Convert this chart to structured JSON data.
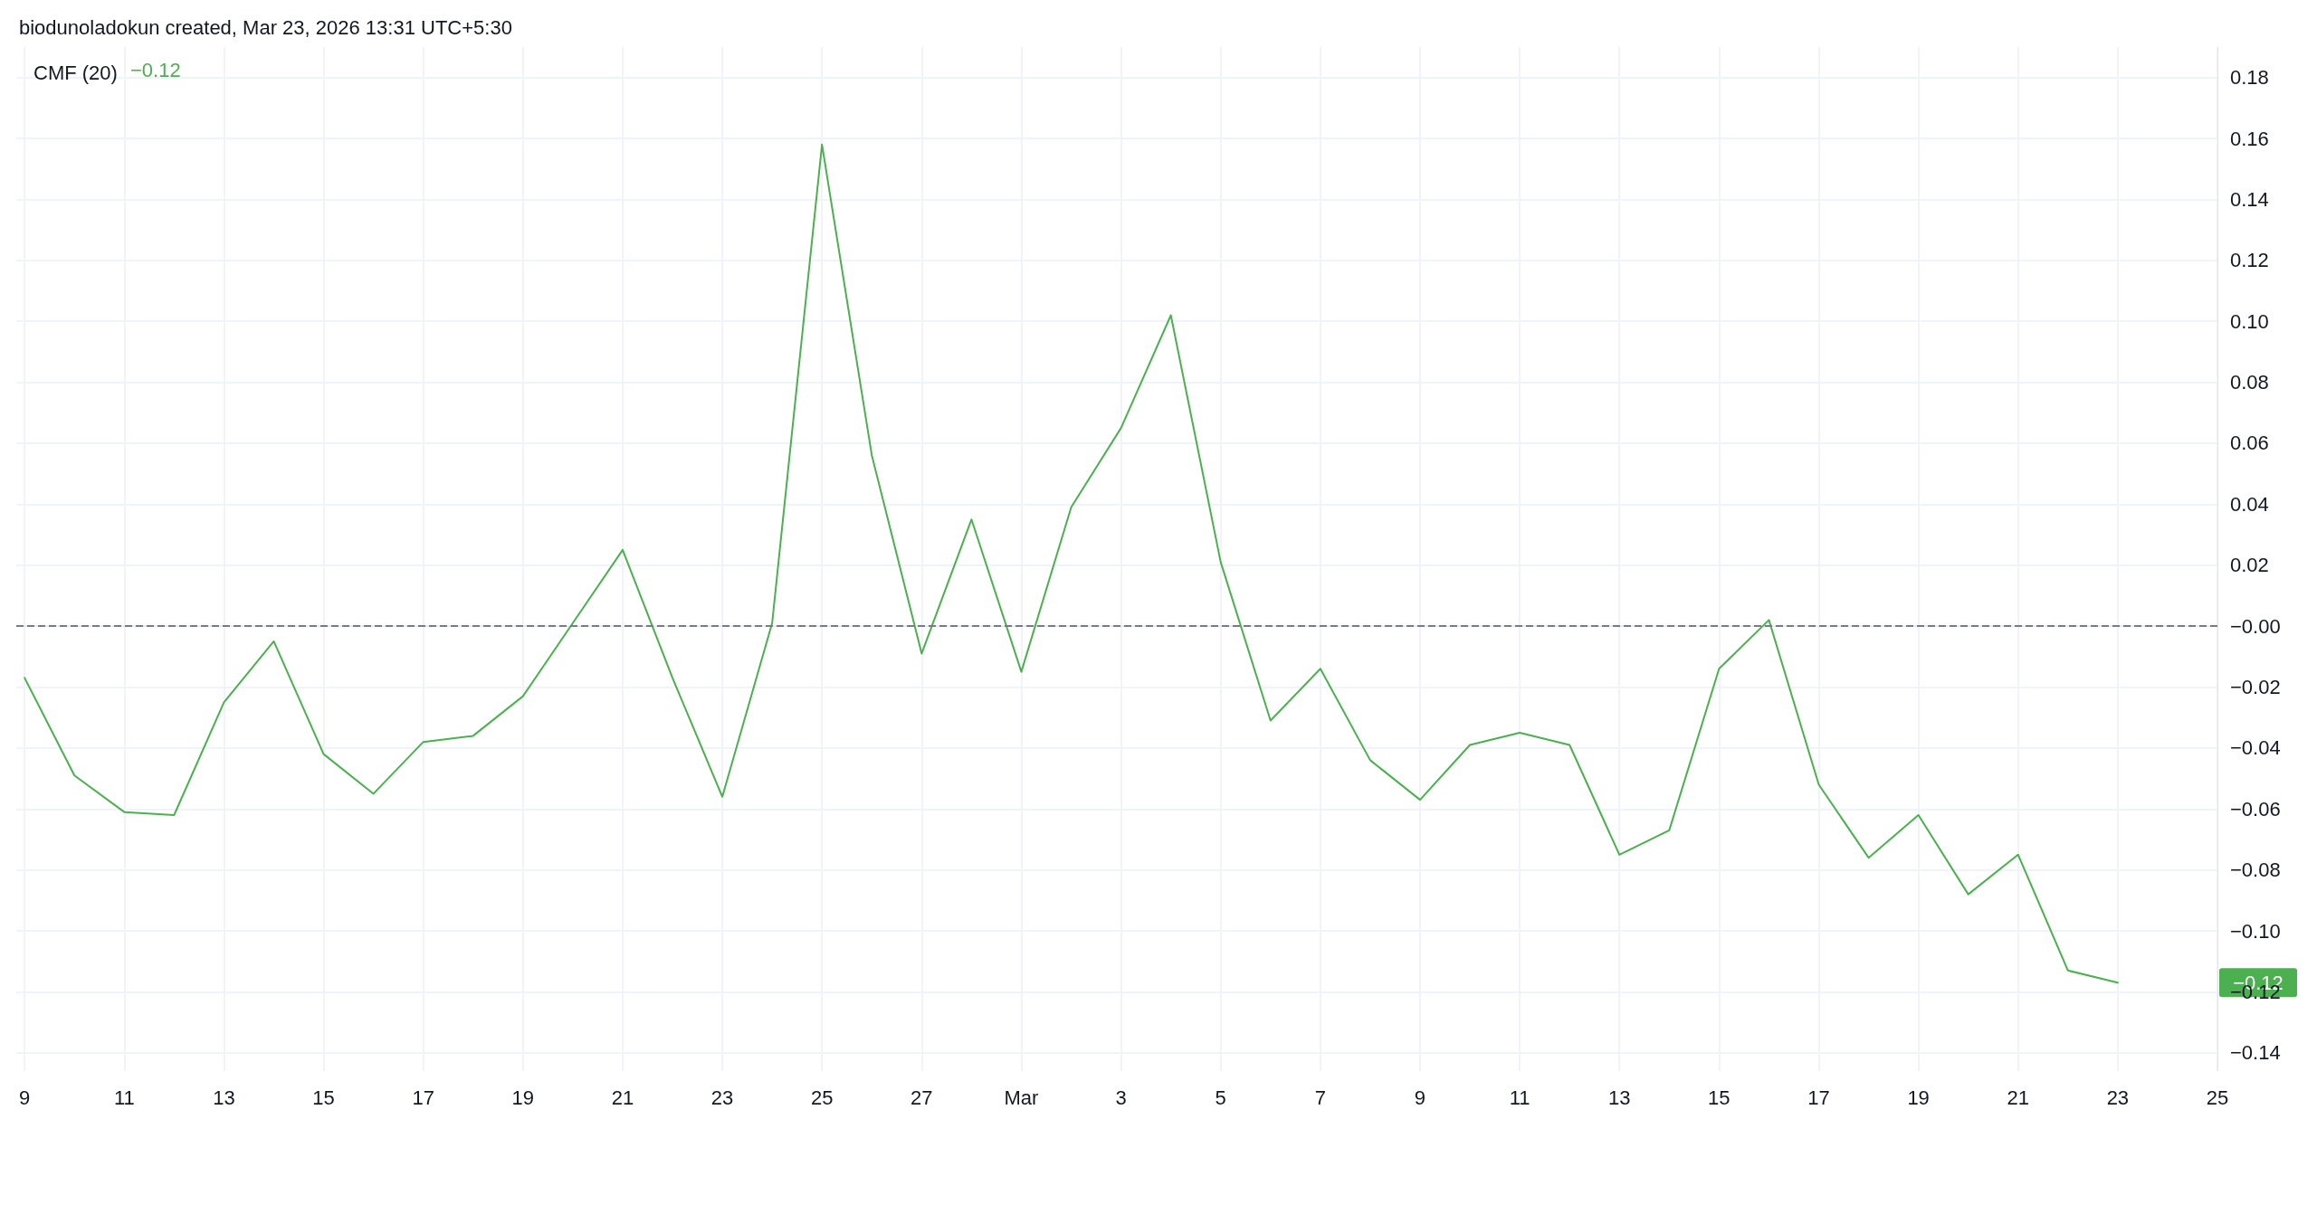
{
  "chart_data": {
    "type": "line",
    "title": "CMF (20)",
    "annotations": [
      "biodunoladokun created, Mar 23, 2026 13:31 UTC+5:30",
      "−0.12",
      "−0.12"
    ],
    "x": [
      "2026-02-09",
      "2026-02-10",
      "2026-02-11",
      "2026-02-12",
      "2026-02-13",
      "2026-02-14",
      "2026-02-15",
      "2026-02-16",
      "2026-02-17",
      "2026-02-18",
      "2026-02-19",
      "2026-02-20",
      "2026-02-21",
      "2026-02-22",
      "2026-02-23",
      "2026-02-24",
      "2026-02-25",
      "2026-02-26",
      "2026-02-27",
      "2026-02-28",
      "2026-03-01",
      "2026-03-02",
      "2026-03-03",
      "2026-03-04",
      "2026-03-05",
      "2026-03-06",
      "2026-03-07",
      "2026-03-08",
      "2026-03-09",
      "2026-03-10",
      "2026-03-11",
      "2026-03-12",
      "2026-03-13",
      "2026-03-14",
      "2026-03-15",
      "2026-03-16",
      "2026-03-17",
      "2026-03-18",
      "2026-03-19",
      "2026-03-20",
      "2026-03-21",
      "2026-03-22",
      "2026-03-23"
    ],
    "series": [
      {
        "color": "#4caf50",
        "values": [
          -0.017,
          -0.049,
          -0.061,
          -0.062,
          -0.025,
          -0.005,
          -0.042,
          -0.055,
          -0.038,
          -0.036,
          -0.023,
          0.001,
          0.025,
          -0.017,
          -0.056,
          0.001,
          0.158,
          0.056,
          -0.009,
          0.035,
          -0.015,
          0.039,
          0.065,
          0.102,
          0.021,
          -0.031,
          -0.014,
          -0.044,
          -0.057,
          -0.039,
          -0.035,
          -0.039,
          -0.075,
          -0.067,
          -0.014,
          0.002,
          -0.052,
          -0.076,
          -0.062,
          -0.088,
          -0.075,
          -0.113,
          -0.117
        ]
      }
    ],
    "xlim": [
      "2026-02-08T20:00",
      "2026-03-25"
    ],
    "xticks": [
      {
        "value": "2026-02-09",
        "label": "9"
      },
      {
        "value": "2026-02-11",
        "label": "11"
      },
      {
        "value": "2026-02-13",
        "label": "13"
      },
      {
        "value": "2026-02-15",
        "label": "15"
      },
      {
        "value": "2026-02-17",
        "label": "17"
      },
      {
        "value": "2026-02-19",
        "label": "19"
      },
      {
        "value": "2026-02-21",
        "label": "21"
      },
      {
        "value": "2026-02-23",
        "label": "23"
      },
      {
        "value": "2026-02-25",
        "label": "25"
      },
      {
        "value": "2026-02-27",
        "label": "27"
      },
      {
        "value": "2026-03-01",
        "label": "Mar"
      },
      {
        "value": "2026-03-03",
        "label": "3"
      },
      {
        "value": "2026-03-05",
        "label": "5"
      },
      {
        "value": "2026-03-07",
        "label": "7"
      },
      {
        "value": "2026-03-09",
        "label": "9"
      },
      {
        "value": "2026-03-11",
        "label": "11"
      },
      {
        "value": "2026-03-13",
        "label": "13"
      },
      {
        "value": "2026-03-15",
        "label": "15"
      },
      {
        "value": "2026-03-17",
        "label": "17"
      },
      {
        "value": "2026-03-19",
        "label": "19"
      },
      {
        "value": "2026-03-21",
        "label": "21"
      },
      {
        "value": "2026-03-23",
        "label": "23"
      },
      {
        "value": "2026-03-25",
        "label": "25"
      }
    ],
    "ylim": [
      -0.146,
      0.19
    ],
    "yticks": [
      {
        "value": -0.14,
        "label": "−0.14"
      },
      {
        "value": -0.12,
        "label": "−0.12"
      },
      {
        "value": -0.1,
        "label": "−0.10"
      },
      {
        "value": -0.08,
        "label": "−0.08"
      },
      {
        "value": -0.06,
        "label": "−0.06"
      },
      {
        "value": -0.04,
        "label": "−0.04"
      },
      {
        "value": -0.02,
        "label": "−0.02"
      },
      {
        "value": 0,
        "label": "−0.00"
      },
      {
        "value": 0.02,
        "label": "0.02"
      },
      {
        "value": 0.04,
        "label": "0.04"
      },
      {
        "value": 0.06,
        "label": "0.06"
      },
      {
        "value": 0.08,
        "label": "0.08"
      },
      {
        "value": 0.1,
        "label": "0.10"
      },
      {
        "value": 0.12,
        "label": "0.12"
      },
      {
        "value": 0.14,
        "label": "0.14"
      },
      {
        "value": 0.16,
        "label": "0.16"
      },
      {
        "value": 0.18,
        "label": "0.18"
      }
    ],
    "ref_lines": [
      {
        "axis": "y",
        "value": 0,
        "color": "#787b86",
        "line_style": "dashed"
      }
    ],
    "grid": true,
    "marker": "none",
    "line_style": "solid"
  }
}
